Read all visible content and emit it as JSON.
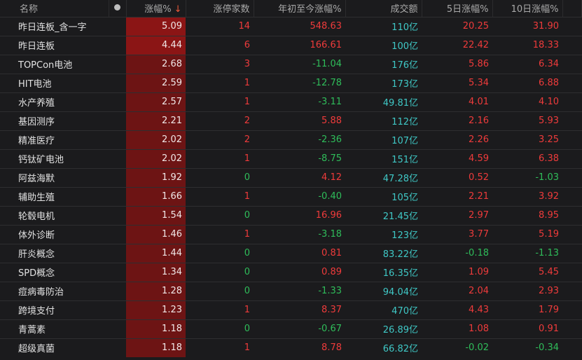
{
  "headers": {
    "name": "名称",
    "change": "涨幅%",
    "sort_icon": "arrow-down",
    "limit_up": "涨停家数",
    "ytd": "年初至今涨幅%",
    "turnover": "成交额",
    "d5": "5日涨幅%",
    "d10": "10日涨幅%"
  },
  "colors": {
    "up": "#ef3b3b",
    "down": "#2fbd5a",
    "turnover": "#3fc8c6",
    "change_bg": "#6d1414"
  },
  "rows": [
    {
      "name": "昨日连板_含一字",
      "change": "5.09",
      "limit_up": "14",
      "ytd": "548.63",
      "turnover": "110亿",
      "d5": "20.25",
      "d10": "31.90"
    },
    {
      "name": "昨日连板",
      "change": "4.44",
      "limit_up": "6",
      "ytd": "166.61",
      "turnover": "100亿",
      "d5": "22.42",
      "d10": "18.33"
    },
    {
      "name": "TOPCon电池",
      "change": "2.68",
      "limit_up": "3",
      "ytd": "-11.04",
      "turnover": "176亿",
      "d5": "5.86",
      "d10": "6.34"
    },
    {
      "name": "HIT电池",
      "change": "2.59",
      "limit_up": "1",
      "ytd": "-12.78",
      "turnover": "173亿",
      "d5": "5.34",
      "d10": "6.88"
    },
    {
      "name": "水产养殖",
      "change": "2.57",
      "limit_up": "1",
      "ytd": "-3.11",
      "turnover": "49.81亿",
      "d5": "4.01",
      "d10": "4.10"
    },
    {
      "name": "基因测序",
      "change": "2.21",
      "limit_up": "2",
      "ytd": "5.88",
      "turnover": "112亿",
      "d5": "2.16",
      "d10": "5.93"
    },
    {
      "name": "精准医疗",
      "change": "2.02",
      "limit_up": "2",
      "ytd": "-2.36",
      "turnover": "107亿",
      "d5": "2.26",
      "d10": "3.25"
    },
    {
      "name": "钙钛矿电池",
      "change": "2.02",
      "limit_up": "1",
      "ytd": "-8.75",
      "turnover": "151亿",
      "d5": "4.59",
      "d10": "6.38"
    },
    {
      "name": "阿兹海默",
      "change": "1.92",
      "limit_up": "0",
      "ytd": "4.12",
      "turnover": "47.28亿",
      "d5": "0.52",
      "d10": "-1.03"
    },
    {
      "name": "辅助生殖",
      "change": "1.66",
      "limit_up": "1",
      "ytd": "-0.40",
      "turnover": "105亿",
      "d5": "2.21",
      "d10": "3.92"
    },
    {
      "name": "轮毂电机",
      "change": "1.54",
      "limit_up": "0",
      "ytd": "16.96",
      "turnover": "21.45亿",
      "d5": "2.97",
      "d10": "8.95"
    },
    {
      "name": "体外诊断",
      "change": "1.46",
      "limit_up": "1",
      "ytd": "-3.18",
      "turnover": "123亿",
      "d5": "3.77",
      "d10": "5.19"
    },
    {
      "name": "肝炎概念",
      "change": "1.44",
      "limit_up": "0",
      "ytd": "0.81",
      "turnover": "83.22亿",
      "d5": "-0.18",
      "d10": "-1.13"
    },
    {
      "name": "SPD概念",
      "change": "1.34",
      "limit_up": "0",
      "ytd": "0.89",
      "turnover": "16.35亿",
      "d5": "1.09",
      "d10": "5.45"
    },
    {
      "name": "痘病毒防治",
      "change": "1.28",
      "limit_up": "0",
      "ytd": "-1.33",
      "turnover": "94.04亿",
      "d5": "2.04",
      "d10": "2.93"
    },
    {
      "name": "跨境支付",
      "change": "1.23",
      "limit_up": "1",
      "ytd": "8.37",
      "turnover": "470亿",
      "d5": "4.43",
      "d10": "1.79"
    },
    {
      "name": "青蒿素",
      "change": "1.18",
      "limit_up": "0",
      "ytd": "-0.67",
      "turnover": "26.89亿",
      "d5": "1.08",
      "d10": "0.91"
    },
    {
      "name": "超级真菌",
      "change": "1.18",
      "limit_up": "1",
      "ytd": "8.78",
      "turnover": "66.82亿",
      "d5": "-0.02",
      "d10": "-0.34"
    }
  ]
}
